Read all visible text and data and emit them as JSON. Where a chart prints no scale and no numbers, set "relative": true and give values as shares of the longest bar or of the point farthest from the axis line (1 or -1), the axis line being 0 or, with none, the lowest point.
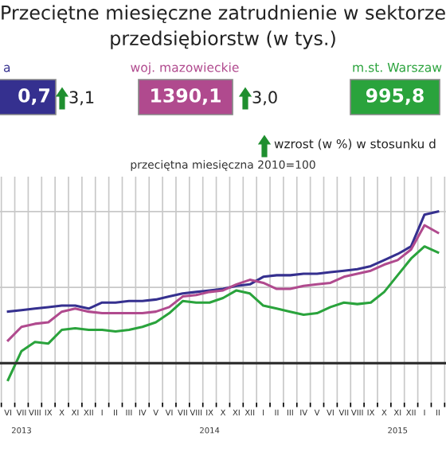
{
  "chart_data": {
    "type": "line",
    "relative": true,
    "title": "Przeciętne miesięczne zatrudnienie w sektorze\nprzedsiębiorstw (w tys.)",
    "subtitle": "przeciętna miesięczna 2010=100",
    "annotations": [
      "0,7",
      "1390,1",
      "995,8",
      "3,1",
      "3,0",
      "wzrost (w %) w stosunku d"
    ],
    "categories": [
      "VI",
      "VII\n\n2013",
      "VIII",
      "IX",
      "X",
      "XI",
      "XII",
      "I",
      "II",
      "III",
      "IV",
      "V",
      "VI",
      "VII",
      "VIII",
      "IX\n\n2014",
      "X",
      "XI",
      "XII",
      "I",
      "II",
      "III",
      "IV",
      "V",
      "VI",
      "VII",
      "VIII",
      "IX",
      "X",
      "XI\n\n2015",
      "XII",
      "I",
      "II"
    ],
    "grid": true,
    "legend": "top",
    "series": [
      {
        "name": "a",
        "color": "#35308f",
        "values": [
          0.34,
          0.35,
          0.36,
          0.37,
          0.38,
          0.38,
          0.36,
          0.4,
          0.4,
          0.41,
          0.41,
          0.42,
          0.44,
          0.46,
          0.47,
          0.48,
          0.49,
          0.51,
          0.52,
          0.57,
          0.58,
          0.58,
          0.59,
          0.59,
          0.6,
          0.61,
          0.62,
          0.64,
          0.68,
          0.72,
          0.77,
          0.98,
          1
        ]
      },
      {
        "name": "woj. mazowieckie",
        "color": "#b04a8e",
        "values": [
          0.15,
          0.24,
          0.26,
          0.27,
          0.34,
          0.36,
          0.34,
          0.33,
          0.33,
          0.33,
          0.33,
          0.34,
          0.37,
          0.44,
          0.45,
          0.47,
          0.48,
          0.52,
          0.55,
          0.53,
          0.49,
          0.49,
          0.51,
          0.52,
          0.53,
          0.57,
          0.59,
          0.61,
          0.65,
          0.68,
          0.75,
          0.91,
          0.86
        ]
      },
      {
        "name": "m.st. Warszaw",
        "color": "#2aa33c",
        "values": [
          -0.11,
          0.08,
          0.14,
          0.13,
          0.22,
          0.23,
          0.22,
          0.22,
          0.21,
          0.22,
          0.24,
          0.27,
          0.33,
          0.41,
          0.4,
          0.4,
          0.43,
          0.48,
          0.46,
          0.38,
          0.36,
          0.34,
          0.32,
          0.33,
          0.37,
          0.4,
          0.39,
          0.4,
          0.47,
          0.58,
          0.69,
          0.77,
          0.73
        ]
      }
    ]
  }
}
